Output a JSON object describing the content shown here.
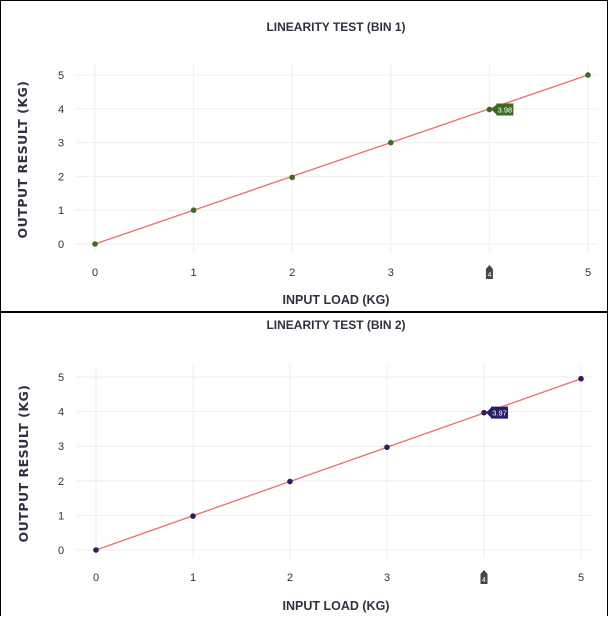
{
  "chart_data": [
    {
      "type": "line",
      "title": "LINEARITY TEST (BIN 1)",
      "xlabel": "INPUT LOAD (KG)",
      "ylabel": "OUTPUT RESULT (KG)",
      "xlim": [
        0,
        5
      ],
      "ylim": [
        0,
        5
      ],
      "x_ticks": [
        "0",
        "1",
        "2",
        "3",
        "4",
        "5"
      ],
      "y_ticks": [
        "0",
        "1",
        "2",
        "3",
        "4",
        "5"
      ],
      "grid": true,
      "fit_color": "#f06a6a",
      "point_color": "#3d6b22",
      "series": [
        {
          "x": [
            0,
            1,
            2,
            3,
            4,
            5
          ],
          "y": [
            0.0,
            1.0,
            1.97,
            3.0,
            3.98,
            5.0
          ]
        }
      ],
      "hover": {
        "x": 4,
        "y": 3.98,
        "label": "3.98",
        "x_label": "4",
        "color": "#3d6b22"
      }
    },
    {
      "type": "line",
      "title": "LINEARITY TEST (BIN 2)",
      "xlabel": "INPUT LOAD (KG)",
      "ylabel": "OUTPUT RESULT (KG)",
      "xlim": [
        0,
        5
      ],
      "ylim": [
        0,
        5
      ],
      "x_ticks": [
        "0",
        "1",
        "2",
        "3",
        "4",
        "5"
      ],
      "y_ticks": [
        "0",
        "1",
        "2",
        "3",
        "4",
        "5"
      ],
      "grid": true,
      "fit_color": "#f06a6a",
      "point_color": "#2a1f66",
      "series": [
        {
          "x": [
            0,
            1,
            2,
            3,
            4,
            5
          ],
          "y": [
            0.0,
            0.98,
            1.98,
            2.97,
            3.97,
            4.95
          ]
        }
      ],
      "hover": {
        "x": 4,
        "y": 3.97,
        "label": "3.97",
        "x_label": "4",
        "color": "#2a1f66"
      }
    }
  ]
}
